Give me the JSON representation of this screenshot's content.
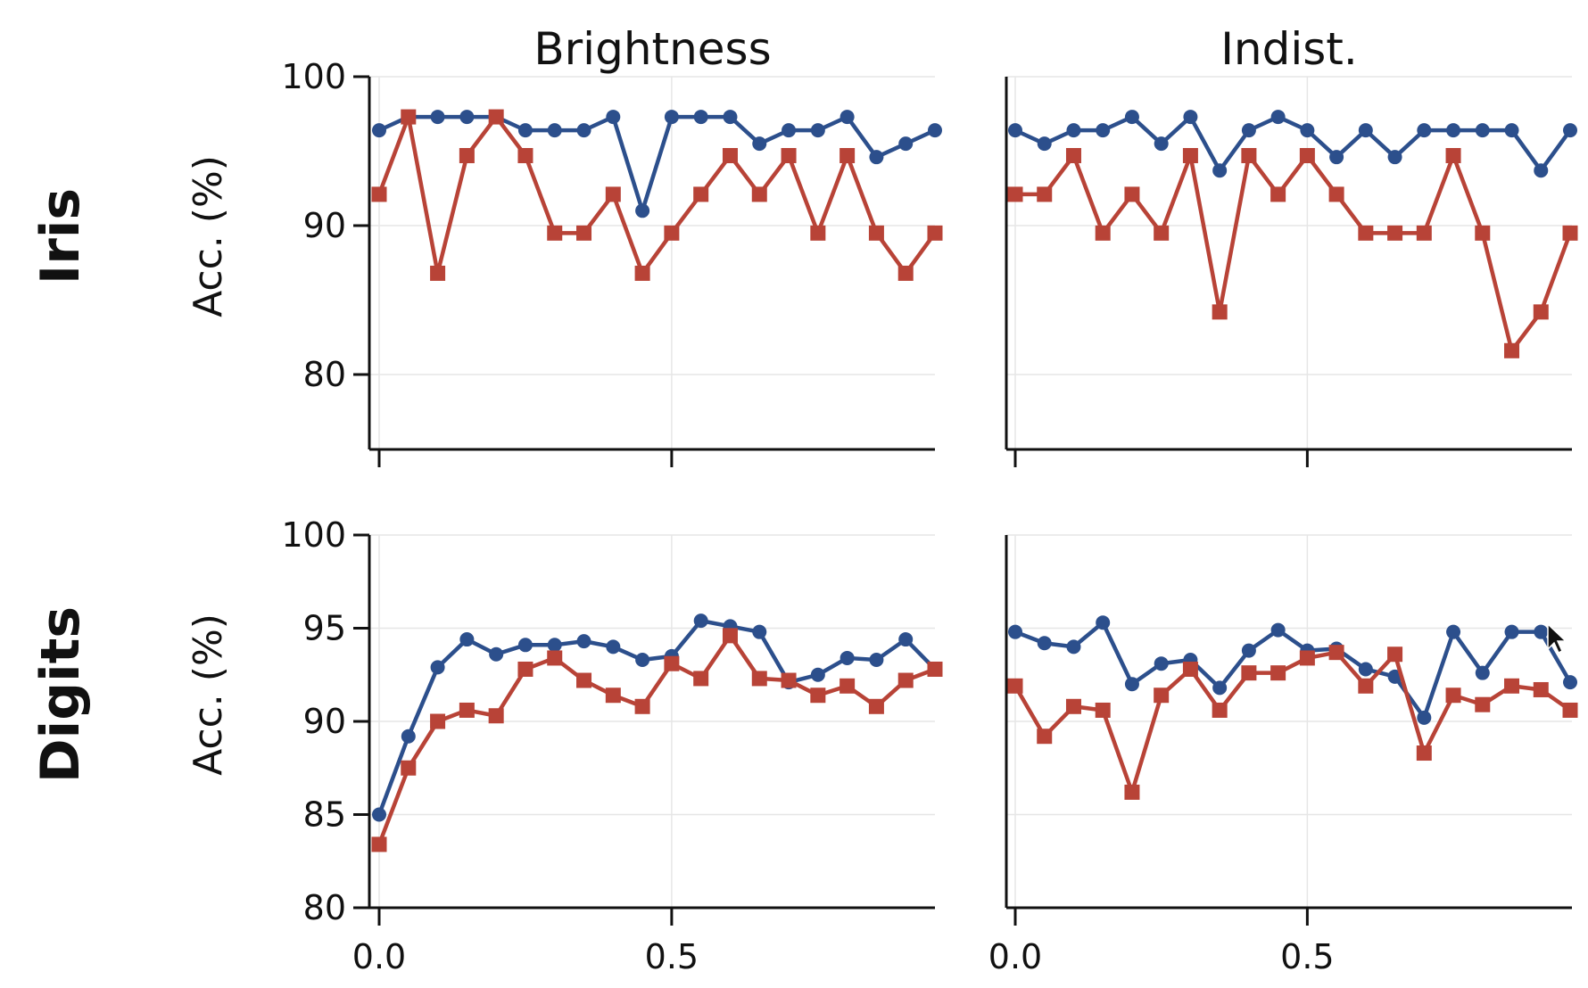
{
  "colors": {
    "series_a": "#2c4f8c",
    "series_b": "#b84337"
  },
  "chart_data": [
    {
      "type": "line",
      "column_title": "Brightness",
      "row_title": "Iris",
      "ylabel": "Acc. (%)",
      "xlim": [
        0.0,
        0.95
      ],
      "ylim": [
        75,
        100
      ],
      "yticks": [
        80,
        90,
        100
      ],
      "xticks": [
        0.0,
        0.5
      ],
      "show_xtick_labels": false,
      "show_yticks": true,
      "grid": true,
      "x": [
        0.0,
        0.05,
        0.1,
        0.15,
        0.2,
        0.25,
        0.3,
        0.35,
        0.4,
        0.45,
        0.5,
        0.55,
        0.6,
        0.65,
        0.7,
        0.75,
        0.8,
        0.85,
        0.9,
        0.95
      ],
      "series": [
        {
          "marker": "circle",
          "color": "#2c4f8c",
          "values": [
            96.4,
            97.3,
            97.3,
            97.3,
            97.3,
            96.4,
            96.4,
            96.4,
            97.3,
            91.0,
            97.3,
            97.3,
            97.3,
            95.5,
            96.4,
            96.4,
            97.3,
            94.6,
            95.5,
            96.4
          ]
        },
        {
          "marker": "square",
          "color": "#b84337",
          "values": [
            92.1,
            97.3,
            86.8,
            94.7,
            97.3,
            94.7,
            89.5,
            89.5,
            92.1,
            86.8,
            89.5,
            92.1,
            94.7,
            92.1,
            94.7,
            89.5,
            94.7,
            89.5,
            86.8,
            89.5
          ]
        }
      ]
    },
    {
      "type": "line",
      "column_title": "Indist.",
      "row_title": "",
      "ylabel": "",
      "xlim": [
        0.0,
        0.95
      ],
      "ylim": [
        75,
        100
      ],
      "yticks": [
        80,
        90,
        100
      ],
      "xticks": [
        0.0,
        0.5
      ],
      "show_xtick_labels": false,
      "show_yticks": false,
      "grid": true,
      "x": [
        0.0,
        0.05,
        0.1,
        0.15,
        0.2,
        0.25,
        0.3,
        0.35,
        0.4,
        0.45,
        0.5,
        0.55,
        0.6,
        0.65,
        0.7,
        0.75,
        0.8,
        0.85,
        0.9,
        0.95
      ],
      "series": [
        {
          "marker": "circle",
          "color": "#2c4f8c",
          "values": [
            96.4,
            95.5,
            96.4,
            96.4,
            97.3,
            95.5,
            97.3,
            93.7,
            96.4,
            97.3,
            96.4,
            94.6,
            96.4,
            94.6,
            96.4,
            96.4,
            96.4,
            96.4,
            93.7,
            96.4
          ]
        },
        {
          "marker": "square",
          "color": "#b84337",
          "values": [
            92.1,
            92.1,
            94.7,
            89.5,
            92.1,
            89.5,
            94.7,
            84.2,
            94.7,
            92.1,
            94.7,
            92.1,
            89.5,
            89.5,
            89.5,
            94.7,
            89.5,
            81.6,
            84.2,
            89.5
          ]
        }
      ]
    },
    {
      "type": "line",
      "column_title": "",
      "row_title": "Digits",
      "ylabel": "Acc. (%)",
      "xlim": [
        0.0,
        0.95
      ],
      "ylim": [
        80,
        100
      ],
      "yticks": [
        80,
        85,
        90,
        95,
        100
      ],
      "xticks": [
        0.0,
        0.5
      ],
      "show_xtick_labels": true,
      "show_yticks": true,
      "grid": true,
      "x": [
        0.0,
        0.05,
        0.1,
        0.15,
        0.2,
        0.25,
        0.3,
        0.35,
        0.4,
        0.45,
        0.5,
        0.55,
        0.6,
        0.65,
        0.7,
        0.75,
        0.8,
        0.85,
        0.9,
        0.95
      ],
      "series": [
        {
          "marker": "circle",
          "color": "#2c4f8c",
          "values": [
            85.0,
            89.2,
            92.9,
            94.4,
            93.6,
            94.1,
            94.1,
            94.3,
            94.0,
            93.3,
            93.5,
            95.4,
            95.1,
            94.8,
            92.1,
            92.5,
            93.4,
            93.3,
            94.4,
            92.8
          ]
        },
        {
          "marker": "square",
          "color": "#b84337",
          "values": [
            83.4,
            87.5,
            90.0,
            90.6,
            90.3,
            92.8,
            93.4,
            92.2,
            91.4,
            90.8,
            93.1,
            92.3,
            94.6,
            92.3,
            92.2,
            91.4,
            91.9,
            90.8,
            92.2,
            92.8
          ]
        }
      ]
    },
    {
      "type": "line",
      "column_title": "",
      "row_title": "",
      "ylabel": "",
      "xlim": [
        0.0,
        0.95
      ],
      "ylim": [
        80,
        100
      ],
      "yticks": [
        80,
        85,
        90,
        95,
        100
      ],
      "xticks": [
        0.0,
        0.5
      ],
      "show_xtick_labels": true,
      "show_yticks": false,
      "grid": true,
      "x": [
        0.0,
        0.05,
        0.1,
        0.15,
        0.2,
        0.25,
        0.3,
        0.35,
        0.4,
        0.45,
        0.5,
        0.55,
        0.6,
        0.65,
        0.7,
        0.75,
        0.8,
        0.85,
        0.9,
        0.95
      ],
      "series": [
        {
          "marker": "circle",
          "color": "#2c4f8c",
          "values": [
            94.8,
            94.2,
            94.0,
            95.3,
            92.0,
            93.1,
            93.3,
            91.8,
            93.8,
            94.9,
            93.8,
            93.9,
            92.8,
            92.4,
            90.2,
            94.8,
            92.6,
            94.8,
            94.8,
            92.1
          ]
        },
        {
          "marker": "square",
          "color": "#b84337",
          "values": [
            91.9,
            89.2,
            90.8,
            90.6,
            86.2,
            91.4,
            92.8,
            90.6,
            92.6,
            92.6,
            93.4,
            93.7,
            91.9,
            93.6,
            88.3,
            91.4,
            90.9,
            91.9,
            91.7,
            90.6
          ]
        }
      ]
    }
  ]
}
